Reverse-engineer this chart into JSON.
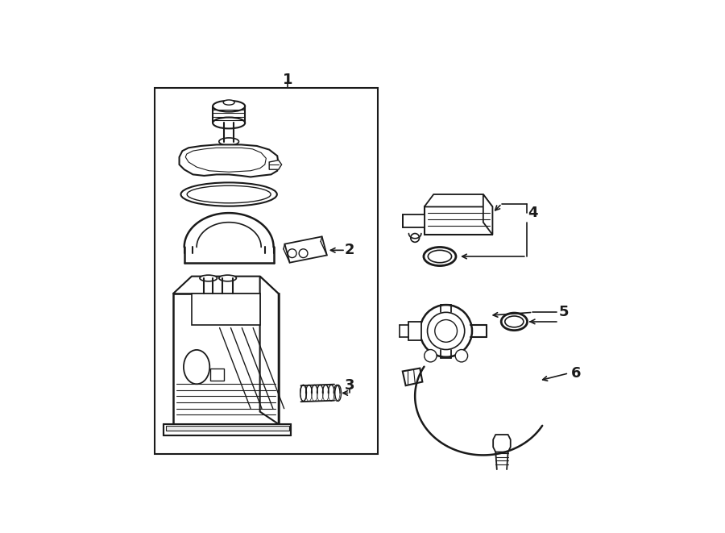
{
  "bg_color": "#ffffff",
  "line_color": "#1a1a1a",
  "fig_width": 9.0,
  "fig_height": 6.61,
  "dpi": 100,
  "xlim": [
    0,
    900
  ],
  "ylim": [
    0,
    661
  ]
}
